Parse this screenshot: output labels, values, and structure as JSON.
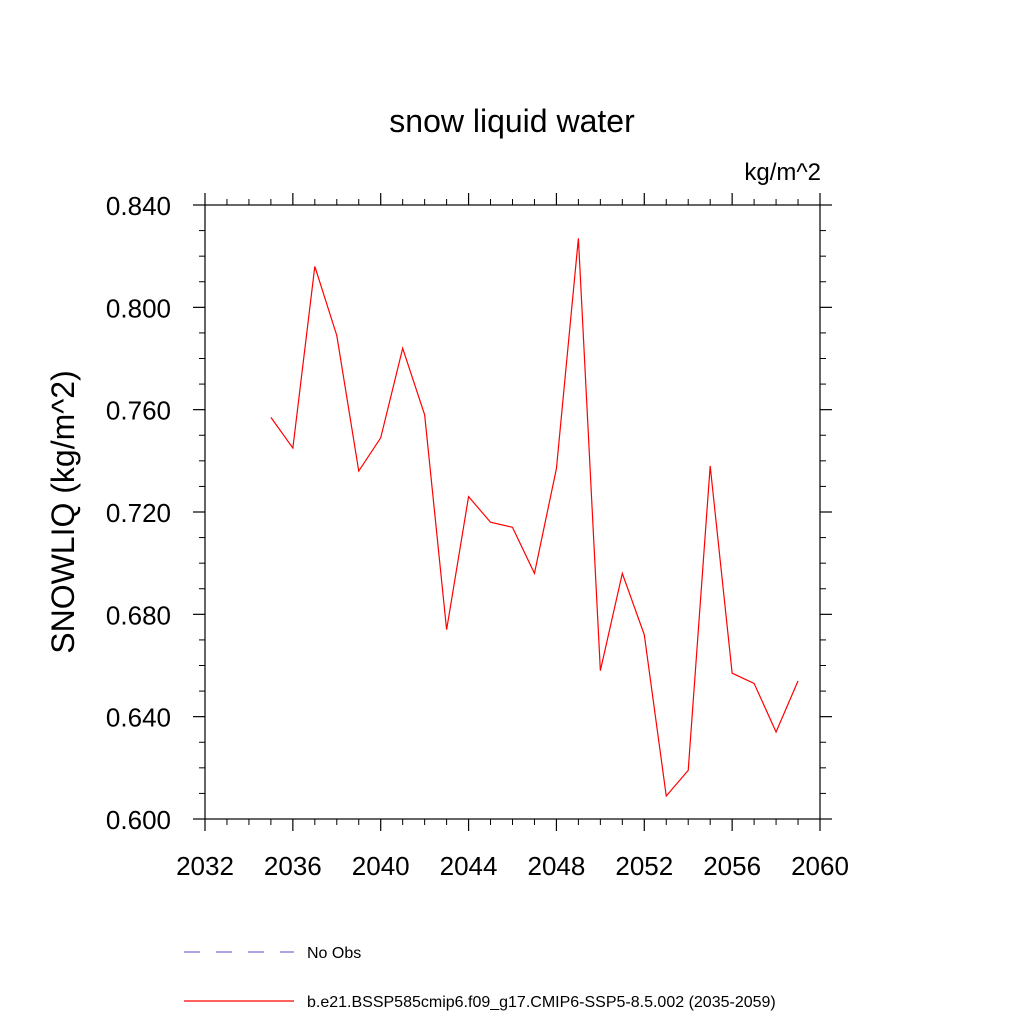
{
  "chart_data": {
    "type": "line",
    "title": "snow liquid water",
    "units_label": "kg/m^2",
    "xlabel": "",
    "ylabel": "SNOWLIQ  (kg/m^2)",
    "xlim": [
      2032,
      2060
    ],
    "ylim": [
      0.6,
      0.84
    ],
    "x_ticks": [
      2032,
      2036,
      2040,
      2044,
      2048,
      2052,
      2056,
      2060
    ],
    "x_tick_labels": [
      "2032",
      "2036",
      "2040",
      "2044",
      "2048",
      "2052",
      "2056",
      "2060"
    ],
    "x_minor_step": 1,
    "y_ticks": [
      0.6,
      0.64,
      0.68,
      0.72,
      0.76,
      0.8,
      0.84
    ],
    "y_tick_labels": [
      "0.600",
      "0.640",
      "0.680",
      "0.720",
      "0.760",
      "0.800",
      "0.840"
    ],
    "y_minor_step": 0.01,
    "grid": false,
    "series": [
      {
        "name": "b.e21.BSSP585cmip6.f09_g17.CMIP6-SSP5-8.5.002 (2035-2059)",
        "color": "#ff0000",
        "x": [
          2035,
          2036,
          2037,
          2038,
          2039,
          2040,
          2041,
          2042,
          2043,
          2044,
          2045,
          2046,
          2047,
          2048,
          2049,
          2050,
          2051,
          2052,
          2053,
          2054,
          2055,
          2056,
          2057,
          2058,
          2059
        ],
        "values": [
          0.757,
          0.745,
          0.816,
          0.789,
          0.736,
          0.749,
          0.784,
          0.758,
          0.674,
          0.726,
          0.716,
          0.714,
          0.696,
          0.737,
          0.827,
          0.658,
          0.696,
          0.672,
          0.609,
          0.619,
          0.738,
          0.657,
          0.653,
          0.634,
          0.654
        ]
      }
    ],
    "legend": {
      "placement": "bottom",
      "entries": [
        {
          "label": "No Obs",
          "color": "#7b6fd0",
          "style": "dashed"
        },
        {
          "label": "b.e21.BSSP585cmip6.f09_g17.CMIP6-SSP5-8.5.002 (2035-2059)",
          "color": "#ff0000",
          "style": "solid"
        }
      ]
    }
  }
}
